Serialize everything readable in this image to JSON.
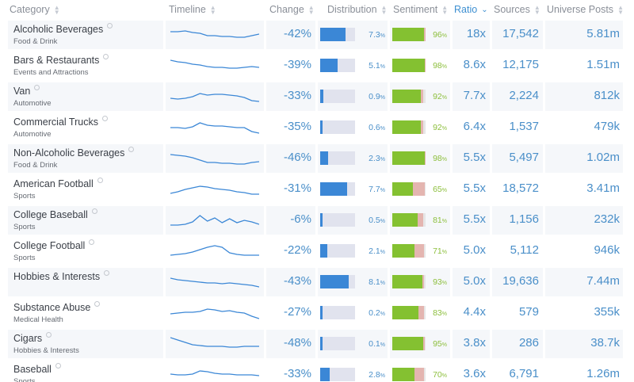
{
  "header": {
    "category": "Category",
    "timeline": "Timeline",
    "change": "Change",
    "distribution": "Distribution",
    "sentiment": "Sentiment",
    "ratio": "Ratio",
    "sources": "Sources",
    "universe_posts": "Universe Posts"
  },
  "active_sort_column": "ratio",
  "colors": {
    "accent": "#3d8fd1",
    "distribution_bar": "#3b87d6",
    "sentiment_positive": "#84c131",
    "sentiment_negative": "#e4b5b0",
    "timeline_line": "#3b87d6"
  },
  "rows": [
    {
      "name": "Alcoholic Beverages",
      "sub": "Food & Drink",
      "change": "-42%",
      "dist": "7.3",
      "dist_frac": 0.073,
      "sent": "96",
      "sent_pos": 0.95,
      "sent_neg": 0.04,
      "ratio": "18x",
      "sources": "17,542",
      "posts": "5.81m",
      "timeline": [
        10,
        10,
        9,
        11,
        12,
        15,
        15,
        16,
        16,
        17,
        17,
        15,
        13
      ]
    },
    {
      "name": "Bars & Restaurants",
      "sub": "Events and Attractions",
      "change": "-39%",
      "dist": "5.1",
      "dist_frac": 0.051,
      "sent": "98",
      "sent_pos": 0.97,
      "sent_neg": 0.02,
      "ratio": "8.6x",
      "sources": "12,175",
      "posts": "1.51m",
      "timeline": [
        7,
        9,
        10,
        12,
        13,
        15,
        16,
        16,
        17,
        17,
        16,
        15,
        16
      ]
    },
    {
      "name": "Van",
      "sub": "Automotive",
      "change": "-33%",
      "dist": "0.9",
      "dist_frac": 0.009,
      "sent": "92",
      "sent_pos": 0.86,
      "sent_neg": 0.06,
      "ratio": "7.7x",
      "sources": "2,224",
      "posts": "812k",
      "timeline": [
        16,
        17,
        16,
        14,
        10,
        12,
        11,
        11,
        12,
        13,
        15,
        19,
        20
      ]
    },
    {
      "name": "Commercial Trucks",
      "sub": "Automotive",
      "change": "-35%",
      "dist": "0.6",
      "dist_frac": 0.006,
      "sent": "92",
      "sent_pos": 0.86,
      "sent_neg": 0.06,
      "ratio": "6.4x",
      "sources": "1,537",
      "posts": "479k",
      "timeline": [
        14,
        14,
        15,
        13,
        8,
        11,
        12,
        12,
        13,
        14,
        14,
        19,
        21
      ]
    },
    {
      "name": "Non-Alcoholic Beverages",
      "sub": "Food & Drink",
      "change": "-46%",
      "dist": "2.3",
      "dist_frac": 0.023,
      "sent": "98",
      "sent_pos": 0.97,
      "sent_neg": 0.02,
      "ratio": "5.5x",
      "sources": "5,497",
      "posts": "1.02m",
      "timeline": [
        9,
        10,
        11,
        13,
        16,
        19,
        19,
        20,
        20,
        21,
        21,
        19,
        18
      ]
    },
    {
      "name": "American Football",
      "sub": "Sports",
      "change": "-31%",
      "dist": "7.7",
      "dist_frac": 0.077,
      "sent": "65",
      "sent_pos": 0.62,
      "sent_neg": 0.35,
      "ratio": "5.5x",
      "sources": "18,572",
      "posts": "3.41m",
      "timeline": [
        19,
        17,
        14,
        12,
        10,
        11,
        13,
        14,
        15,
        17,
        18,
        20,
        20
      ]
    },
    {
      "name": "College Baseball",
      "sub": "Sports",
      "change": "-6%",
      "dist": "0.5",
      "dist_frac": 0.005,
      "sent": "81",
      "sent_pos": 0.76,
      "sent_neg": 0.18,
      "ratio": "5.5x",
      "sources": "1,156",
      "posts": "232k",
      "timeline": [
        20,
        20,
        19,
        16,
        8,
        15,
        11,
        17,
        12,
        17,
        14,
        16,
        19
      ]
    },
    {
      "name": "College Football",
      "sub": "Sports",
      "change": "-22%",
      "dist": "2.1",
      "dist_frac": 0.021,
      "sent": "71",
      "sent_pos": 0.67,
      "sent_neg": 0.28,
      "ratio": "5.0x",
      "sources": "5,112",
      "posts": "946k",
      "timeline": [
        19,
        18,
        17,
        15,
        12,
        9,
        7,
        9,
        16,
        18,
        19,
        19,
        19
      ]
    },
    {
      "name": "Hobbies & Interests",
      "sub": "",
      "change": "-43%",
      "dist": "8.1",
      "dist_frac": 0.081,
      "sent": "93",
      "sent_pos": 0.9,
      "sent_neg": 0.05,
      "ratio": "5.0x",
      "sources": "19,636",
      "posts": "7.44m",
      "timeline": [
        9,
        11,
        12,
        13,
        14,
        15,
        15,
        16,
        15,
        16,
        17,
        18,
        20
      ]
    },
    {
      "name": "Substance Abuse",
      "sub": "Medical Health",
      "change": "-27%",
      "dist": "0.2",
      "dist_frac": 0.002,
      "sent": "83",
      "sent_pos": 0.79,
      "sent_neg": 0.17,
      "ratio": "4.4x",
      "sources": "579",
      "posts": "355k",
      "timeline": [
        15,
        14,
        13,
        13,
        12,
        9,
        10,
        12,
        11,
        13,
        14,
        18,
        21
      ]
    },
    {
      "name": "Cigars",
      "sub": "Hobbies & Interests",
      "change": "-48%",
      "dist": "0.1",
      "dist_frac": 0.001,
      "sent": "95",
      "sent_pos": 0.93,
      "sent_neg": 0.04,
      "ratio": "3.8x",
      "sources": "286",
      "posts": "38.7k",
      "timeline": [
        6,
        9,
        12,
        15,
        16,
        17,
        17,
        17,
        18,
        18,
        17,
        17,
        17
      ]
    },
    {
      "name": "Baseball",
      "sub": "Sports",
      "change": "-33%",
      "dist": "2.8",
      "dist_frac": 0.028,
      "sent": "70",
      "sent_pos": 0.66,
      "sent_neg": 0.3,
      "ratio": "3.6x",
      "sources": "6,791",
      "posts": "1.26m",
      "timeline": [
        13,
        14,
        14,
        13,
        9,
        10,
        12,
        13,
        13,
        14,
        14,
        14,
        15
      ]
    }
  ]
}
